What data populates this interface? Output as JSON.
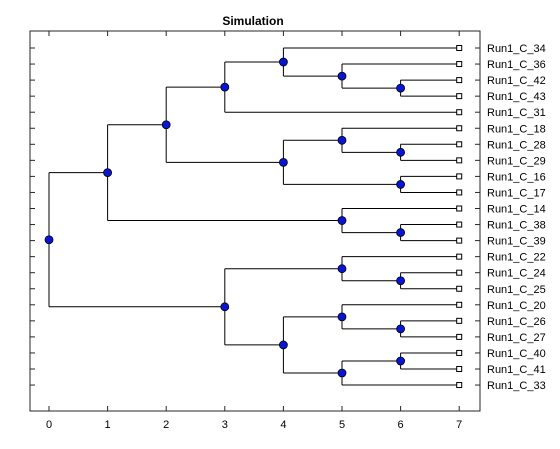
{
  "title": "Simulation",
  "colors": {
    "node": "#0a14d4",
    "line": "#000000",
    "frame": "#262626"
  },
  "x_ticks": [
    "0",
    "1",
    "2",
    "3",
    "4",
    "5",
    "6",
    "7"
  ],
  "tree": {
    "x": 0,
    "children": [
      {
        "x": 1,
        "children": [
          {
            "x": 2,
            "children": [
              {
                "x": 3,
                "children": [
                  {
                    "x": 4,
                    "children": [
                      {
                        "leaf": "Run1_C_34"
                      },
                      {
                        "x": 5,
                        "children": [
                          {
                            "leaf": "Run1_C_36"
                          },
                          {
                            "x": 6,
                            "children": [
                              {
                                "leaf": "Run1_C_42"
                              },
                              {
                                "leaf": "Run1_C_43"
                              }
                            ]
                          }
                        ]
                      }
                    ]
                  },
                  {
                    "leaf": "Run1_C_31"
                  }
                ]
              },
              {
                "x": 4,
                "children": [
                  {
                    "x": 5,
                    "children": [
                      {
                        "leaf": "Run1_C_18"
                      },
                      {
                        "x": 6,
                        "children": [
                          {
                            "leaf": "Run1_C_28"
                          },
                          {
                            "leaf": "Run1_C_29"
                          }
                        ]
                      }
                    ]
                  },
                  {
                    "x": 6,
                    "children": [
                      {
                        "leaf": "Run1_C_16"
                      },
                      {
                        "leaf": "Run1_C_17"
                      }
                    ]
                  }
                ]
              }
            ]
          },
          {
            "x": 5,
            "children": [
              {
                "leaf": "Run1_C_14"
              },
              {
                "x": 6,
                "children": [
                  {
                    "leaf": "Run1_C_38"
                  },
                  {
                    "leaf": "Run1_C_39"
                  }
                ]
              }
            ]
          }
        ]
      },
      {
        "x": 3,
        "children": [
          {
            "x": 5,
            "children": [
              {
                "leaf": "Run1_C_22"
              },
              {
                "x": 6,
                "children": [
                  {
                    "leaf": "Run1_C_24"
                  },
                  {
                    "leaf": "Run1_C_25"
                  }
                ]
              }
            ]
          },
          {
            "x": 4,
            "children": [
              {
                "x": 5,
                "children": [
                  {
                    "leaf": "Run1_C_20"
                  },
                  {
                    "x": 6,
                    "children": [
                      {
                        "leaf": "Run1_C_26"
                      },
                      {
                        "leaf": "Run1_C_27"
                      }
                    ]
                  }
                ]
              },
              {
                "x": 5,
                "children": [
                  {
                    "x": 6,
                    "children": [
                      {
                        "leaf": "Run1_C_40"
                      },
                      {
                        "leaf": "Run1_C_41"
                      }
                    ]
                  },
                  {
                    "leaf": "Run1_C_33"
                  }
                ]
              }
            ]
          }
        ]
      }
    ]
  }
}
